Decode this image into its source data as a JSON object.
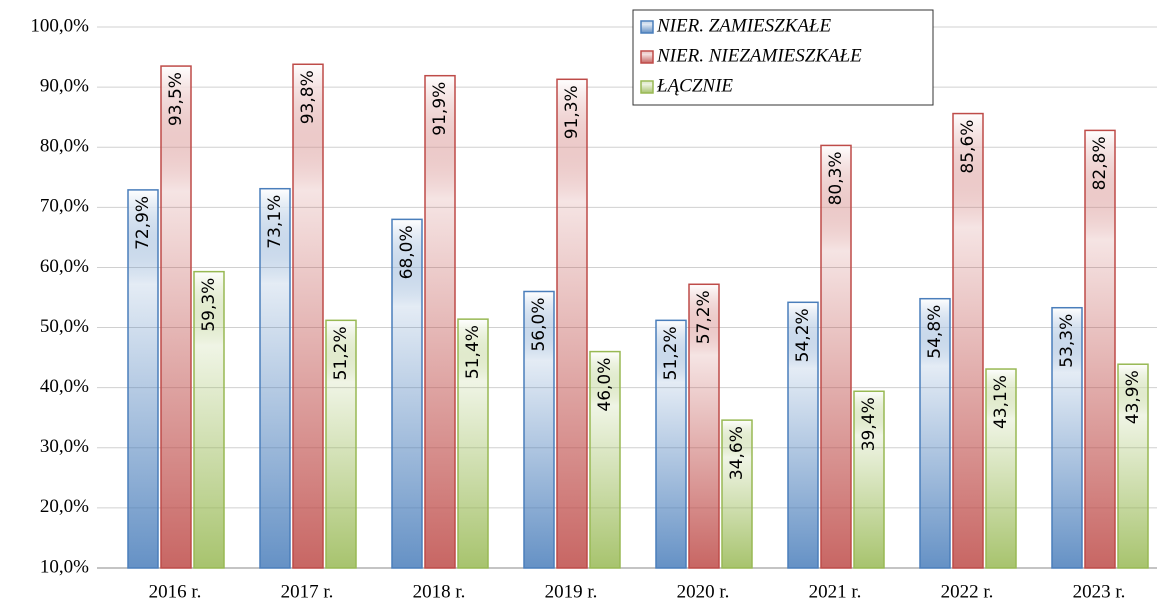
{
  "chart_data": {
    "type": "bar",
    "categories": [
      "2016 r.",
      "2017 r.",
      "2018 r.",
      "2019 r.",
      "2020 r.",
      "2021 r.",
      "2022 r.",
      "2023 r."
    ],
    "series": [
      {
        "name": "NIER. ZAMIESZKAŁE",
        "color": "#4a7ebb",
        "values": [
          72.9,
          73.1,
          68.0,
          56.0,
          51.2,
          54.2,
          54.8,
          53.3
        ],
        "value_labels": [
          "72,9%",
          "73,1%",
          "68,0%",
          "56,0%",
          "51,2%",
          "54,2%",
          "54,8%",
          "53,3%"
        ]
      },
      {
        "name": "NIER. NIEZAMIESZKAŁE",
        "color": "#be4b48",
        "values": [
          93.5,
          93.8,
          91.9,
          91.3,
          57.2,
          80.3,
          85.6,
          82.8
        ],
        "value_labels": [
          "93,5%",
          "93,8%",
          "91,9%",
          "91,3%",
          "57,2%",
          "80,3%",
          "85,6%",
          "82,8%"
        ]
      },
      {
        "name": "ŁĄCZNIE",
        "color": "#98b954",
        "values": [
          59.3,
          51.2,
          51.4,
          46.0,
          34.6,
          39.4,
          43.1,
          43.9
        ],
        "value_labels": [
          "59,3%",
          "51,2%",
          "51,4%",
          "46,0%",
          "34,6%",
          "39,4%",
          "43,1%",
          "43,9%"
        ]
      }
    ],
    "ylim": [
      10,
      100
    ],
    "yticks": [
      {
        "value": 10,
        "label": "10,0%"
      },
      {
        "value": 20,
        "label": "20,0%"
      },
      {
        "value": 30,
        "label": "30,0%"
      },
      {
        "value": 40,
        "label": "40,0%"
      },
      {
        "value": 50,
        "label": "50,0%"
      },
      {
        "value": 60,
        "label": "60,0%"
      },
      {
        "value": 70,
        "label": "70,0%"
      },
      {
        "value": 80,
        "label": "80,0%"
      },
      {
        "value": 90,
        "label": "90,0%"
      },
      {
        "value": 100,
        "label": "100,0%"
      }
    ],
    "grid": true,
    "legend": "top-right"
  }
}
